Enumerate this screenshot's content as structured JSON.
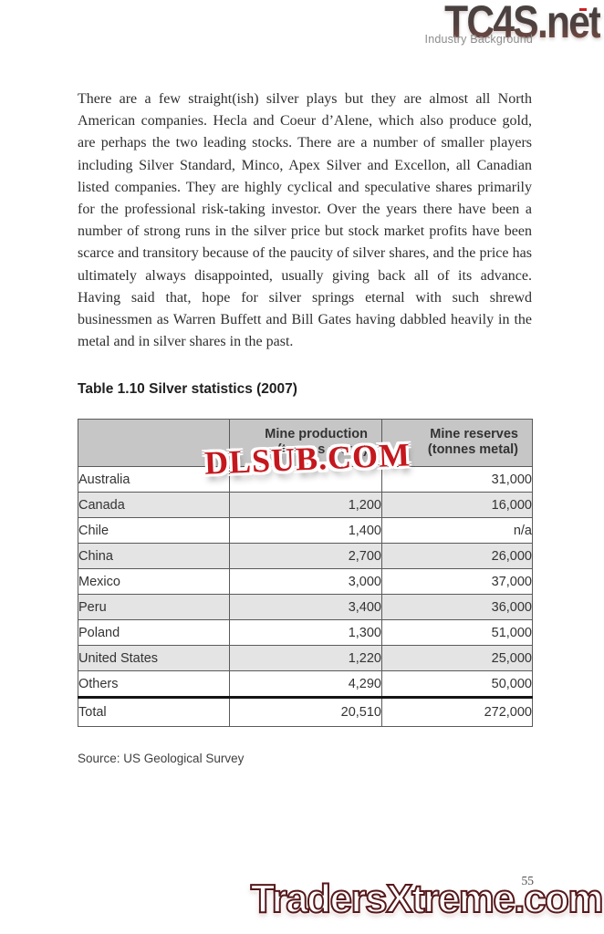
{
  "header": {
    "logo_text": "TC4S.net",
    "section_label": "Industry Background"
  },
  "article": {
    "paragraph": "There are a few straight(ish) silver plays but they are almost all North American companies. Hecla and Coeur d’Alene, which also produce gold, are perhaps the two leading stocks. There are a number of smaller players including Silver Standard, Minco, Apex Silver and Excellon, all Canadian listed companies. They are highly cyclical and speculative shares primarily for the professional risk-taking investor. Over the years there have been a number of strong runs in the silver price but stock market profits have been scarce and transitory because of the paucity of silver shares, and the price has ultimately always disappointed, usually giving back all of its advance. Having said that, hope for silver springs eternal with such shrewd businessmen as Warren Buffett and Bill Gates having dabbled heavily in the metal and in silver shares in the past."
  },
  "table": {
    "caption": "Table 1.10 Silver statistics (2007)",
    "header": {
      "col_country": "",
      "col_production_line1": "Mine production",
      "col_production_line2": "(tonnes metal)",
      "col_reserves_line1": "Mine reserves",
      "col_reserves_line2": "(tonnes metal)"
    },
    "rows": [
      {
        "country": "Australia",
        "production": "",
        "reserves": "31,000"
      },
      {
        "country": "Canada",
        "production": "1,200",
        "reserves": "16,000"
      },
      {
        "country": "Chile",
        "production": "1,400",
        "reserves": "n/a"
      },
      {
        "country": "China",
        "production": "2,700",
        "reserves": "26,000"
      },
      {
        "country": "Mexico",
        "production": "3,000",
        "reserves": "37,000"
      },
      {
        "country": "Peru",
        "production": "3,400",
        "reserves": "36,000"
      },
      {
        "country": "Poland",
        "production": "1,300",
        "reserves": "51,000"
      },
      {
        "country": "United States",
        "production": "1,220",
        "reserves": "25,000"
      },
      {
        "country": "Others",
        "production": "4,290",
        "reserves": "50,000"
      },
      {
        "country": "Total",
        "production": "20,510",
        "reserves": "272,000"
      }
    ],
    "source": "Source: US Geological Survey"
  },
  "watermark": {
    "text": "DLSUB.COM"
  },
  "footer": {
    "page_number": "55",
    "logo_text": "TradersXtreme.com"
  },
  "colors": {
    "table_header_bg": "#c6c6c6",
    "table_alt_row_bg": "#e4e4e4",
    "watermark_red": "#c4181e",
    "footer_logo_red": "#c9484c",
    "brand_logo_dark": "#454040"
  }
}
